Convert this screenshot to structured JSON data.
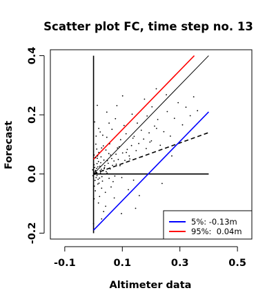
{
  "chart_data": {
    "type": "scatter",
    "title": "Scatter plot FC, time step no. 13",
    "xlabel": "Altimeter data",
    "ylabel": "Forecast",
    "xlim": [
      -0.15,
      0.55
    ],
    "ylim": [
      -0.22,
      0.42
    ],
    "xticks": [
      -0.1,
      0.1,
      0.3,
      0.5
    ],
    "xtick_labels": [
      "-0.1",
      "0.1",
      "0.3",
      "0.5"
    ],
    "yticks": [
      -0.2,
      0.0,
      0.2,
      0.4
    ],
    "ytick_labels": [
      "-0.2",
      "0.0",
      "0.2",
      "0.4"
    ],
    "grid": false,
    "legend_position": "bottom-right",
    "lines": [
      {
        "role": "reference-vertical",
        "x": [
          0.0,
          0.0
        ],
        "y": [
          -0.2,
          0.4
        ],
        "color": "#000000",
        "style": "solid",
        "width": 1.6
      },
      {
        "role": "reference-horizontal",
        "x": [
          0.0,
          0.4
        ],
        "y": [
          0.0,
          0.0
        ],
        "color": "#000000",
        "style": "solid",
        "width": 1.6
      },
      {
        "role": "identity",
        "x": [
          0.0,
          0.4
        ],
        "y": [
          0.0,
          0.4
        ],
        "color": "#000000",
        "style": "solid",
        "width": 1
      },
      {
        "role": "regression",
        "x": [
          0.0,
          0.4
        ],
        "y": [
          0.0,
          0.14
        ],
        "color": "#000000",
        "style": "dashed",
        "width": 1.6
      },
      {
        "role": "percentile-5",
        "x": [
          0.0,
          0.4
        ],
        "y": [
          -0.19,
          0.21
        ],
        "color": "#0000ff",
        "style": "solid",
        "width": 1.6
      },
      {
        "role": "percentile-95",
        "x": [
          0.0,
          0.35
        ],
        "y": [
          0.05,
          0.4
        ],
        "color": "#ff0000",
        "style": "solid",
        "width": 1.6
      }
    ],
    "legend": [
      {
        "label": "5%: -0.13m",
        "color": "#0000ff"
      },
      {
        "label": "95%:  0.04m",
        "color": "#ff0000"
      }
    ],
    "scatter": {
      "color": "#000000",
      "points": [
        [
          -0.003,
          0.014
        ],
        [
          0.004,
          -0.001
        ],
        [
          0.01,
          0.005
        ],
        [
          -0.002,
          -0.006
        ],
        [
          0.015,
          0.024
        ],
        [
          0.006,
          0.009
        ],
        [
          0.021,
          -0.014
        ],
        [
          0.002,
          0.031
        ],
        [
          0.012,
          -0.005
        ],
        [
          0.027,
          0.016
        ],
        [
          0.008,
          0.0
        ],
        [
          0.017,
          0.042
        ],
        [
          0.033,
          0.011
        ],
        [
          0.005,
          -0.022
        ],
        [
          0.024,
          0.004
        ],
        [
          0.011,
          0.019
        ],
        [
          0.039,
          0.028
        ],
        [
          0.001,
          0.007
        ],
        [
          0.019,
          -0.031
        ],
        [
          0.044,
          0.008
        ],
        [
          0.013,
          0.053
        ],
        [
          0.029,
          -0.009
        ],
        [
          0.007,
          0.012
        ],
        [
          0.051,
          0.036
        ],
        [
          0.016,
          -0.018
        ],
        [
          0.036,
          0.047
        ],
        [
          0.003,
          -0.041
        ],
        [
          0.058,
          0.017
        ],
        [
          0.022,
          0.026
        ],
        [
          0.009,
          -0.012
        ],
        [
          0.063,
          0.052
        ],
        [
          0.031,
          -0.024
        ],
        [
          0.014,
          0.061
        ],
        [
          0.047,
          0.003
        ],
        [
          0.025,
          0.038
        ],
        [
          0.071,
          0.044
        ],
        [
          0.004,
          0.022
        ],
        [
          0.054,
          -0.015
        ],
        [
          0.018,
          0.073
        ],
        [
          0.038,
          0.021
        ],
        [
          0.078,
          0.067
        ],
        [
          0.028,
          -0.048
        ],
        [
          0.012,
          0.035
        ],
        [
          0.066,
          0.029
        ],
        [
          0.043,
          0.081
        ],
        [
          0.086,
          0.049
        ],
        [
          0.006,
          -0.057
        ],
        [
          0.059,
          0.064
        ],
        [
          0.023,
          0.011
        ],
        [
          0.092,
          0.028
        ],
        [
          0.034,
          0.095
        ],
        [
          0.074,
          -0.007
        ],
        [
          0.015,
          -0.034
        ],
        [
          0.048,
          0.045
        ],
        [
          0.101,
          0.071
        ],
        [
          0.041,
          -0.062
        ],
        [
          0.083,
          0.088
        ],
        [
          0.026,
          0.058
        ],
        [
          0.109,
          0.046
        ],
        [
          0.056,
          0.102
        ],
        [
          0.002,
          0.064
        ],
        [
          0.068,
          -0.026
        ],
        [
          0.117,
          0.083
        ],
        [
          0.037,
          0.018
        ],
        [
          0.094,
          0.116
        ],
        [
          0.011,
          0.084
        ],
        [
          0.124,
          0.061
        ],
        [
          0.061,
          -0.044
        ],
        [
          0.046,
          0.124
        ],
        [
          0.132,
          0.096
        ],
        [
          0.079,
          0.033
        ],
        [
          0.021,
          -0.076
        ],
        [
          0.141,
          0.127
        ],
        [
          0.098,
          -0.012
        ],
        [
          0.053,
          0.069
        ],
        [
          0.148,
          0.079
        ],
        [
          0.008,
          0.101
        ],
        [
          0.113,
          0.136
        ],
        [
          0.072,
          -0.081
        ],
        [
          0.157,
          0.103
        ],
        [
          0.032,
          0.131
        ],
        [
          0.126,
          0.051
        ],
        [
          0.166,
          0.148
        ],
        [
          0.089,
          0.092
        ],
        [
          0.017,
          -0.098
        ],
        [
          0.174,
          0.118
        ],
        [
          0.139,
          -0.021
        ],
        [
          0.064,
          0.151
        ],
        [
          0.183,
          0.086
        ],
        [
          0.106,
          0.164
        ],
        [
          0.193,
          0.139
        ],
        [
          0.042,
          -0.109
        ],
        [
          0.152,
          0.172
        ],
        [
          0.201,
          0.112
        ],
        [
          0.121,
          -0.053
        ],
        [
          0.076,
          0.187
        ],
        [
          0.212,
          0.162
        ],
        [
          0.168,
          0.058
        ],
        [
          0.009,
          0.128
        ],
        [
          0.223,
          0.184
        ],
        [
          0.137,
          0.121
        ],
        [
          0.097,
          -0.134
        ],
        [
          0.232,
          0.097
        ],
        [
          0.186,
          0.196
        ],
        [
          0.054,
          0.172
        ],
        [
          0.244,
          0.143
        ],
        [
          0.159,
          -0.073
        ],
        [
          0.203,
          0.227
        ],
        [
          0.114,
          0.073
        ],
        [
          0.256,
          0.211
        ],
        [
          0.028,
          -0.152
        ],
        [
          0.219,
          0.154
        ],
        [
          0.267,
          0.128
        ],
        [
          0.177,
          0.253
        ],
        [
          0.134,
          0.202
        ],
        [
          0.281,
          0.188
        ],
        [
          0.238,
          -0.032
        ],
        [
          0.081,
          0.231
        ],
        [
          0.294,
          0.241
        ],
        [
          0.196,
          0.108
        ],
        [
          0.309,
          0.166
        ],
        [
          0.253,
          0.268
        ],
        [
          0.146,
          -0.116
        ],
        [
          0.321,
          0.226
        ],
        [
          0.218,
          0.288
        ],
        [
          0.336,
          0.197
        ],
        [
          0.272,
          0.061
        ],
        [
          0.348,
          0.261
        ],
        [
          0.101,
          0.264
        ],
        [
          0.361,
          0.214
        ],
        [
          0.023,
          0.142
        ],
        [
          0.004,
          0.176
        ],
        [
          0.035,
          -0.127
        ],
        [
          0.013,
          0.232
        ],
        [
          0.0,
          -0.168
        ],
        [
          0.046,
          0.209
        ],
        [
          0.007,
          0.055
        ],
        [
          0.002,
          -0.084
        ],
        [
          0.028,
          0.088
        ],
        [
          0.018,
          0.154
        ]
      ]
    }
  }
}
